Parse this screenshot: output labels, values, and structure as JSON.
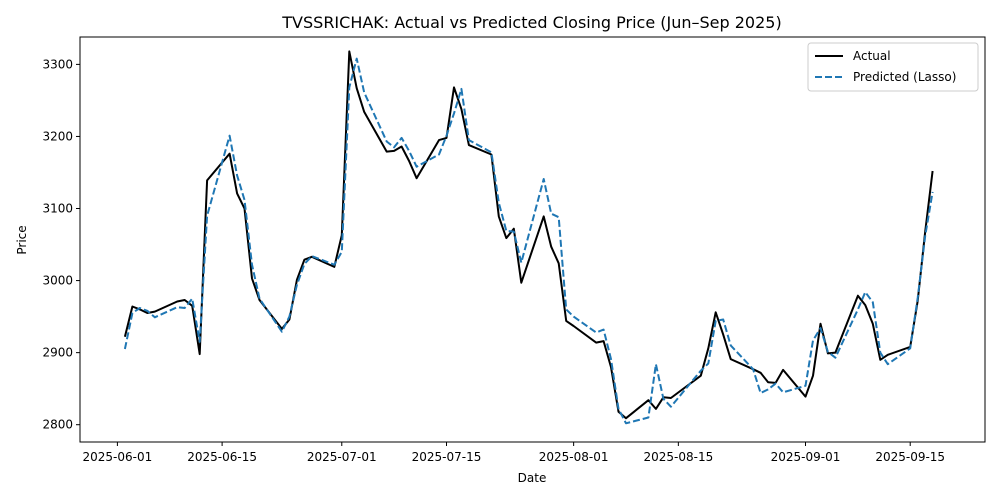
{
  "chart_data": {
    "type": "line",
    "title": "TVSSRICHAK: Actual vs Predicted Closing Price (Jun–Sep 2025)",
    "xlabel": "Date",
    "ylabel": "Price",
    "xlim": [
      "2025-05-27",
      "2025-09-25"
    ],
    "ylim": [
      2776,
      3338
    ],
    "xticks": [
      "2025-06-01",
      "2025-06-15",
      "2025-07-01",
      "2025-07-15",
      "2025-08-01",
      "2025-08-15",
      "2025-09-01",
      "2025-09-15"
    ],
    "yticks": [
      2800,
      2900,
      3000,
      3100,
      3200,
      3300
    ],
    "grid": false,
    "legend_position": "top-right",
    "series": [
      {
        "name": "Actual",
        "color": "#000000",
        "style": "solid",
        "points": [
          [
            "2025-06-02",
            2922
          ],
          [
            "2025-06-03",
            2964
          ],
          [
            "2025-06-04",
            2960
          ],
          [
            "2025-06-05",
            2955
          ],
          [
            "2025-06-06",
            2957
          ],
          [
            "2025-06-09",
            2971
          ],
          [
            "2025-06-10",
            2973
          ],
          [
            "2025-06-11",
            2965
          ],
          [
            "2025-06-12",
            2898
          ],
          [
            "2025-06-13",
            3139
          ],
          [
            "2025-06-16",
            3176
          ],
          [
            "2025-06-17",
            3121
          ],
          [
            "2025-06-18",
            3100
          ],
          [
            "2025-06-19",
            3003
          ],
          [
            "2025-06-20",
            2973
          ],
          [
            "2025-06-23",
            2933
          ],
          [
            "2025-06-24",
            2946
          ],
          [
            "2025-06-25",
            3001
          ],
          [
            "2025-06-26",
            3029
          ],
          [
            "2025-06-27",
            3033
          ],
          [
            "2025-06-30",
            3019
          ],
          [
            "2025-07-01",
            3063
          ],
          [
            "2025-07-02",
            3318
          ],
          [
            "2025-07-03",
            3267
          ],
          [
            "2025-07-04",
            3234
          ],
          [
            "2025-07-07",
            3179
          ],
          [
            "2025-07-08",
            3180
          ],
          [
            "2025-07-09",
            3186
          ],
          [
            "2025-07-10",
            3166
          ],
          [
            "2025-07-11",
            3142
          ],
          [
            "2025-07-14",
            3195
          ],
          [
            "2025-07-15",
            3198
          ],
          [
            "2025-07-16",
            3268
          ],
          [
            "2025-07-17",
            3238
          ],
          [
            "2025-07-18",
            3188
          ],
          [
            "2025-07-21",
            3175
          ],
          [
            "2025-07-22",
            3089
          ],
          [
            "2025-07-23",
            3059
          ],
          [
            "2025-07-24",
            3072
          ],
          [
            "2025-07-25",
            2997
          ],
          [
            "2025-07-28",
            3089
          ],
          [
            "2025-07-29",
            3047
          ],
          [
            "2025-07-30",
            3024
          ],
          [
            "2025-07-31",
            2944
          ],
          [
            "2025-08-01",
            2937
          ],
          [
            "2025-08-04",
            2914
          ],
          [
            "2025-08-05",
            2916
          ],
          [
            "2025-08-06",
            2880
          ],
          [
            "2025-08-07",
            2818
          ],
          [
            "2025-08-08",
            2809
          ],
          [
            "2025-08-11",
            2834
          ],
          [
            "2025-08-12",
            2822
          ],
          [
            "2025-08-13",
            2838
          ],
          [
            "2025-08-14",
            2837
          ],
          [
            "2025-08-18",
            2868
          ],
          [
            "2025-08-19",
            2906
          ],
          [
            "2025-08-20",
            2956
          ],
          [
            "2025-08-21",
            2925
          ],
          [
            "2025-08-22",
            2891
          ],
          [
            "2025-08-25",
            2877
          ],
          [
            "2025-08-26",
            2872
          ],
          [
            "2025-08-27",
            2859
          ],
          [
            "2025-08-28",
            2858
          ],
          [
            "2025-08-29",
            2876
          ],
          [
            "2025-09-01",
            2839
          ],
          [
            "2025-09-02",
            2868
          ],
          [
            "2025-09-03",
            2940
          ],
          [
            "2025-09-04",
            2899
          ],
          [
            "2025-09-05",
            2900
          ],
          [
            "2025-09-08",
            2979
          ],
          [
            "2025-09-09",
            2966
          ],
          [
            "2025-09-10",
            2940
          ],
          [
            "2025-09-11",
            2890
          ],
          [
            "2025-09-12",
            2897
          ],
          [
            "2025-09-15",
            2908
          ],
          [
            "2025-09-16",
            2972
          ],
          [
            "2025-09-17",
            3068
          ],
          [
            "2025-09-18",
            3152
          ]
        ]
      },
      {
        "name": "Predicted (Lasso)",
        "color": "#1f77b4",
        "style": "dashed",
        "points": [
          [
            "2025-06-02",
            2905
          ],
          [
            "2025-06-03",
            2955
          ],
          [
            "2025-06-04",
            2962
          ],
          [
            "2025-06-05",
            2958
          ],
          [
            "2025-06-06",
            2949
          ],
          [
            "2025-06-09",
            2963
          ],
          [
            "2025-06-10",
            2962
          ],
          [
            "2025-06-11",
            2975
          ],
          [
            "2025-06-12",
            2915
          ],
          [
            "2025-06-13",
            3090
          ],
          [
            "2025-06-16",
            3201
          ],
          [
            "2025-06-17",
            3146
          ],
          [
            "2025-06-18",
            3112
          ],
          [
            "2025-06-19",
            3022
          ],
          [
            "2025-06-20",
            2975
          ],
          [
            "2025-06-23",
            2929
          ],
          [
            "2025-06-24",
            2950
          ],
          [
            "2025-06-25",
            2994
          ],
          [
            "2025-06-26",
            3023
          ],
          [
            "2025-06-27",
            3034
          ],
          [
            "2025-06-30",
            3022
          ],
          [
            "2025-07-01",
            3040
          ],
          [
            "2025-07-02",
            3268
          ],
          [
            "2025-07-03",
            3308
          ],
          [
            "2025-07-04",
            3261
          ],
          [
            "2025-07-07",
            3193
          ],
          [
            "2025-07-08",
            3185
          ],
          [
            "2025-07-09",
            3198
          ],
          [
            "2025-07-10",
            3180
          ],
          [
            "2025-07-11",
            3158
          ],
          [
            "2025-07-14",
            3175
          ],
          [
            "2025-07-15",
            3201
          ],
          [
            "2025-07-16",
            3232
          ],
          [
            "2025-07-17",
            3266
          ],
          [
            "2025-07-18",
            3195
          ],
          [
            "2025-07-21",
            3178
          ],
          [
            "2025-07-22",
            3108
          ],
          [
            "2025-07-23",
            3069
          ],
          [
            "2025-07-24",
            3068
          ],
          [
            "2025-07-25",
            3025
          ],
          [
            "2025-07-28",
            3141
          ],
          [
            "2025-07-29",
            3093
          ],
          [
            "2025-07-30",
            3088
          ],
          [
            "2025-07-31",
            2960
          ],
          [
            "2025-08-01",
            2950
          ],
          [
            "2025-08-04",
            2928
          ],
          [
            "2025-08-05",
            2932
          ],
          [
            "2025-08-06",
            2891
          ],
          [
            "2025-08-07",
            2822
          ],
          [
            "2025-08-08",
            2802
          ],
          [
            "2025-08-11",
            2810
          ],
          [
            "2025-08-12",
            2884
          ],
          [
            "2025-08-13",
            2836
          ],
          [
            "2025-08-14",
            2825
          ],
          [
            "2025-08-18",
            2875
          ],
          [
            "2025-08-19",
            2885
          ],
          [
            "2025-08-20",
            2944
          ],
          [
            "2025-08-21",
            2946
          ],
          [
            "2025-08-22",
            2910
          ],
          [
            "2025-08-25",
            2877
          ],
          [
            "2025-08-26",
            2844
          ],
          [
            "2025-08-27",
            2849
          ],
          [
            "2025-08-28",
            2857
          ],
          [
            "2025-08-29",
            2845
          ],
          [
            "2025-09-01",
            2854
          ],
          [
            "2025-09-02",
            2917
          ],
          [
            "2025-09-03",
            2934
          ],
          [
            "2025-09-04",
            2901
          ],
          [
            "2025-09-05",
            2893
          ],
          [
            "2025-09-08",
            2960
          ],
          [
            "2025-09-09",
            2984
          ],
          [
            "2025-09-10",
            2970
          ],
          [
            "2025-09-11",
            2900
          ],
          [
            "2025-09-12",
            2884
          ],
          [
            "2025-09-15",
            2906
          ],
          [
            "2025-09-16",
            2976
          ],
          [
            "2025-09-17",
            3062
          ],
          [
            "2025-09-18",
            3123
          ]
        ]
      }
    ]
  }
}
